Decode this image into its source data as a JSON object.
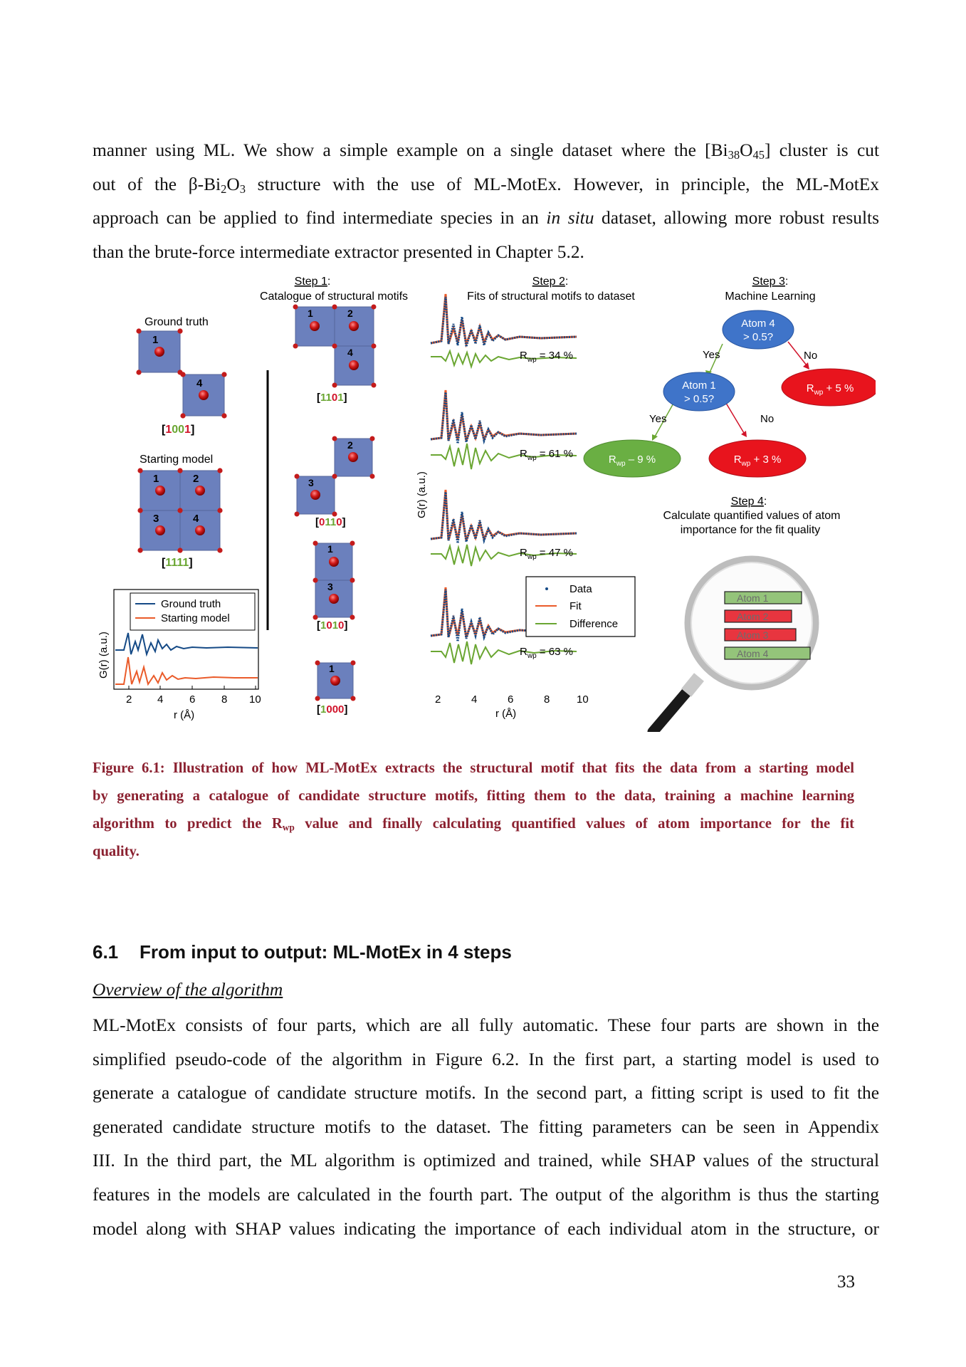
{
  "intro_paragraph": {
    "l1a": "manner using ML. We show a simple example on a single dataset where the [Bi",
    "l1_sub1": "38",
    "l1_o": "O",
    "l1_sub2": "45",
    "l1b": "] cluster is cut",
    "l2a": "out of the β-Bi",
    "l2_sub1": "2",
    "l2_o": "O",
    "l2_sub2": "3",
    "l2b": " structure with the use of ML-MotEx. However, in principle, the ML-MotEx",
    "l3a": "approach can be applied to find intermediate species in an ",
    "l3_italic": "in situ",
    "l3b": " dataset, allowing more robust results",
    "l4": "than the brute-force intermediate extractor presented in Chapter 5.2."
  },
  "figure": {
    "step1": {
      "label": "Step 1",
      "colon": ":",
      "title": "Catalogue of structural motifs"
    },
    "step2": {
      "label": "Step 2",
      "colon": ":",
      "title": "Fits of structural motifs to dataset"
    },
    "step3": {
      "label": "Step 3",
      "colon": ":",
      "title": "Machine Learning"
    },
    "step4": {
      "label": "Step 4",
      "colon": ":",
      "title_l1": "Calculate quantified values of atom",
      "title_l2": "importance for the fit quality"
    },
    "ground_truth_label": "Ground truth",
    "starting_model_label": "Starting model",
    "code_gt": {
      "open": "[",
      "d1": "1",
      "d2": "0",
      "d3": "0",
      "d4": "1",
      "close": "]"
    },
    "code_sm": {
      "open": "[",
      "d1": "1",
      "d2": "1",
      "d3": "1",
      "d4": "1",
      "close": "]"
    },
    "catalogue_codes": [
      {
        "open": "[",
        "d1": "1",
        "d2": "1",
        "d3": "0",
        "d4": "1",
        "close": "]"
      },
      {
        "open": "[",
        "d1": "0",
        "d2": "1",
        "d3": "1",
        "d4": "0",
        "close": "]"
      },
      {
        "open": "[",
        "d1": "1",
        "d2": "0",
        "d3": "1",
        "d4": "0",
        "close": "]"
      },
      {
        "open": "[",
        "d1": "1",
        "d2": "0",
        "d3": "0",
        "d4": "0",
        "close": "]"
      }
    ],
    "atom_numbers": {
      "a1": "1",
      "a2": "2",
      "a3": "3",
      "a4": "4"
    },
    "left_plot": {
      "ylabel": "G(r) (a.u.)",
      "xlabel": "r (Å)",
      "xticks": [
        "2",
        "4",
        "6",
        "8",
        "10"
      ],
      "legend": [
        "Ground truth",
        "Starting model"
      ]
    },
    "fit_plot": {
      "ylabel": "G(r) (a.u.)",
      "xlabel": "r (Å)",
      "xticks": [
        "2",
        "4",
        "6",
        "8",
        "10"
      ],
      "rwp_prefix": "R",
      "rwp_sub": "wp",
      "rwp_values": [
        " = 34 %",
        " = 61 %",
        " = 47 %",
        " = 63 %"
      ],
      "legend": [
        "Data",
        "Fit",
        "Difference"
      ]
    },
    "tree": {
      "root_l1": "Atom 4",
      "root_l2": "> 0.5?",
      "node_l1": "Atom 1",
      "node_l2": "> 0.5?",
      "yes": "Yes",
      "no": "No",
      "leaf_right_top": " + 5 %",
      "leaf_left": " – 9 %",
      "leaf_right": " + 3 %",
      "r": "R",
      "wp": "wp"
    },
    "importance": {
      "bars": [
        "Atom 1",
        "Atom 2",
        "Atom 3",
        "Atom 4"
      ]
    },
    "colors": {
      "blue": "#154a86",
      "orange": "#ea5b2a",
      "green": "#6aa632",
      "red": "#d1132a",
      "tile": "#6b80bd",
      "caption": "#8b2130"
    }
  },
  "caption": {
    "label": "Figure 6.1",
    "colon": ":",
    "l1": " Illustration of how ML-MotEx extracts the structural motif that fits the data from a starting model",
    "l2": "by generating a catalogue of candidate structure motifs, fitting them to the data, training a machine learning",
    "l3a": "algorithm to predict the R",
    "l3_sub": "wp",
    "l3b": " value and finally calculating quantified values of atom importance for the fit",
    "l4": "quality."
  },
  "section": {
    "number": "6.1",
    "title": "From input to output: ML-MotEx in 4 steps"
  },
  "overview_heading": "Overview of the algorithm",
  "body_paragraph": [
    "ML-MotEx consists of four parts, which are all fully automatic. These four parts are shown in the",
    "simplified pseudo-code of the algorithm in Figure 6.2. In the first part, a starting model is used to",
    "generate a catalogue of candidate structure motifs. In the second part, a fitting script is used to fit the",
    "generated candidate structure motifs to the dataset. The fitting parameters can be seen in Appendix",
    "III. In the third part, the ML algorithm is optimized and trained, while SHAP values of the structural",
    "features in the models are calculated in the fourth part. The output of the algorithm is thus the starting",
    "model along with SHAP values indicating the importance of each individual atom in the structure, or"
  ],
  "page_number": "33"
}
